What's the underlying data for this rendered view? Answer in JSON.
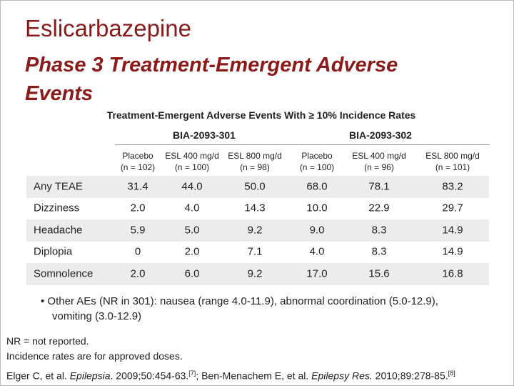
{
  "header": {
    "title": "Eslicarbazepine",
    "subtitle": "Phase 3 Treatment-Emergent Adverse Events"
  },
  "table": {
    "title": "Treatment-Emergent Adverse Events With ≥ 10% Incidence Rates",
    "groups": [
      "BIA-2093-301",
      "BIA-2093-302"
    ],
    "columns": [
      {
        "name": "Placebo",
        "n": "(n = 102)"
      },
      {
        "name": "ESL 400 mg/d",
        "n": "(n = 100)"
      },
      {
        "name": "ESL 800 mg/d",
        "n": "(n = 98)"
      },
      {
        "name": "Placebo",
        "n": "(n = 100)"
      },
      {
        "name": "ESL 400 mg/d",
        "n": "(n = 96)"
      },
      {
        "name": "ESL 800 mg/d",
        "n": "(n = 101)"
      }
    ],
    "rows": [
      [
        "Any TEAE",
        "31.4",
        "44.0",
        "50.0",
        "68.0",
        "78.1",
        "83.2"
      ],
      [
        "Dizziness",
        "2.0",
        "4.0",
        "14.3",
        "10.0",
        "22.9",
        "29.7"
      ],
      [
        "Headache",
        "5.9",
        "5.0",
        "9.2",
        "9.0",
        "8.3",
        "14.9"
      ],
      [
        "Diplopia",
        "0",
        "2.0",
        "7.1",
        "4.0",
        "8.3",
        "14.9"
      ],
      [
        "Somnolence",
        "2.0",
        "6.0",
        "9.2",
        "17.0",
        "15.6",
        "16.8"
      ]
    ]
  },
  "bullet": "Other AEs (NR in 301): nausea (range 4.0-11.9), abnormal coordination (5.0-12.9), vomiting (3.0-12.9)",
  "notes": [
    "NR = not reported.",
    "Incidence rates are for approved doses."
  ],
  "citation": [
    "Elger C, et al. ",
    "Epilepsia",
    ". 2009;50:454-63.",
    "[7]",
    "; Ben-Menachem E, et al. ",
    "Epilepsy Res.",
    " 2010;89:278-85.",
    "[8]"
  ]
}
